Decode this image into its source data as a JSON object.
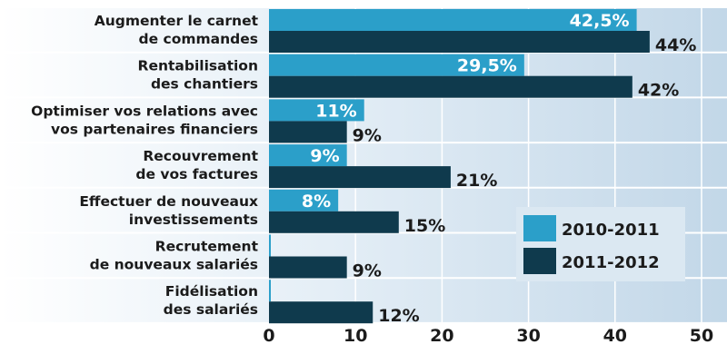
{
  "chart_data": {
    "type": "bar",
    "orientation": "horizontal",
    "categories": [
      [
        "Augmenter le carnet",
        "de commandes"
      ],
      [
        "Rentabilisation",
        "des chantiers"
      ],
      [
        "Optimiser vos relations avec",
        "vos partenaires financiers"
      ],
      [
        "Recouvrement",
        "de vos factures"
      ],
      [
        "Effectuer de nouveaux",
        "investissements"
      ],
      [
        "Recrutement",
        "de nouveaux salariés"
      ],
      [
        "Fidélisation",
        "des salariés"
      ]
    ],
    "series": [
      {
        "name": "2010-2011",
        "color": "#2b9fc9",
        "values": [
          42.5,
          29.5,
          11,
          9,
          8,
          0,
          0
        ],
        "labels": [
          "42,5%",
          "29,5%",
          "11%",
          "9%",
          "8%",
          "",
          ""
        ]
      },
      {
        "name": "2011-2012",
        "color": "#0f3a4d",
        "values": [
          44,
          42,
          9,
          21,
          15,
          9,
          12
        ],
        "labels": [
          "44%",
          "42%",
          "9%",
          "21%",
          "15%",
          "9%",
          "12%"
        ]
      }
    ],
    "xlim": [
      0,
      50
    ],
    "xticks": [
      "0",
      "10",
      "20",
      "30",
      "40",
      "50"
    ],
    "legend_position": "bottom-right",
    "grid": true
  }
}
